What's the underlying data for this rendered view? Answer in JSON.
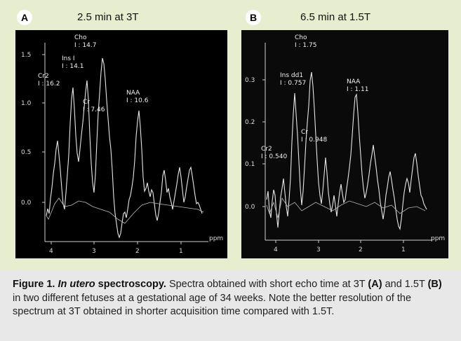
{
  "panels": [
    {
      "label": "A",
      "title": "2.5 min at 3T",
      "yticks": [
        "1.5",
        "1.0",
        "0.5",
        "0.0"
      ],
      "xticks": [
        "4",
        "3",
        "2",
        "1"
      ],
      "xunit": "ppm",
      "peaks": [
        {
          "name": "Cr2",
          "integral": "I : 16.2"
        },
        {
          "name": "Ins I",
          "integral": "I : 14.1"
        },
        {
          "name": "Cho",
          "integral": "I : 14.7"
        },
        {
          "name": "Cr",
          "integral": "I : 7.46"
        },
        {
          "name": "NAA",
          "integral": "I : 10.6"
        }
      ]
    },
    {
      "label": "B",
      "title": "6.5 min at 1.5T",
      "yticks": [
        "0.3",
        "0.2",
        "0.1",
        "0.0"
      ],
      "xticks": [
        "4",
        "3",
        "2",
        "1"
      ],
      "xunit": "ppm",
      "peaks": [
        {
          "name": "Cr2",
          "integral": "I : 0.540"
        },
        {
          "name": "Ins dd1",
          "integral": "I : 0.757"
        },
        {
          "name": "Cho",
          "integral": "I : 1.75"
        },
        {
          "name": "Cr",
          "integral": "I : 0.948"
        },
        {
          "name": "NAA",
          "integral": "I : 1.11"
        }
      ]
    }
  ],
  "caption": {
    "figure_label": "Figure 1.",
    "title_italic": "In utero",
    "title_rest": " spectroscopy.",
    "text_1": " Spectra obtained with short echo time at 3T ",
    "ref_a": "(A)",
    "text_2": " and 1.5T ",
    "ref_b": "(B)",
    "text_3": " in two different fetuses at a gestational age of 34 weeks. Note the better resolution of the spectrum at 3T obtained in shorter acquisition time compared with 1.5T."
  }
}
